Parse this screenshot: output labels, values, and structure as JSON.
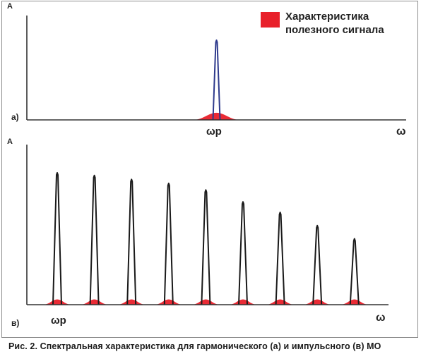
{
  "chart_data": [
    {
      "type": "line",
      "panel_label": "а)",
      "ylabel": "A",
      "xlabel": "ω",
      "x_marker": "ωр",
      "legend": {
        "label_line1": "Характеристика",
        "label_line2": "полезного сигнала",
        "color": "#e8202a",
        "placement": "top-right"
      },
      "series": [
        {
          "kind": "spectral-line",
          "color": "#2e3a8c",
          "peaks": [
            {
              "x": 0.5,
              "height": 1.0
            }
          ]
        },
        {
          "kind": "useful-signal",
          "color": "#e8202a",
          "peaks": [
            {
              "x": 0.5,
              "height": 0.09
            }
          ]
        }
      ]
    },
    {
      "type": "line",
      "panel_label": "в)",
      "ylabel": "A",
      "xlabel": "ω",
      "x_marker": "ωр",
      "series": [
        {
          "kind": "spectral-lines",
          "color": "#1a1a1a",
          "peaks": [
            {
              "x": 1,
              "height": 1.0
            },
            {
              "x": 2,
              "height": 0.98
            },
            {
              "x": 3,
              "height": 0.95
            },
            {
              "x": 4,
              "height": 0.92
            },
            {
              "x": 5,
              "height": 0.87
            },
            {
              "x": 6,
              "height": 0.78
            },
            {
              "x": 7,
              "height": 0.7
            },
            {
              "x": 8,
              "height": 0.6
            },
            {
              "x": 9,
              "height": 0.5
            }
          ]
        },
        {
          "kind": "useful-signal",
          "color": "#e8202a",
          "height": 0.04
        }
      ]
    }
  ],
  "caption": "Рис. 2. Спектральная характеристика для гармонического (а) и импульсного (в) МО"
}
